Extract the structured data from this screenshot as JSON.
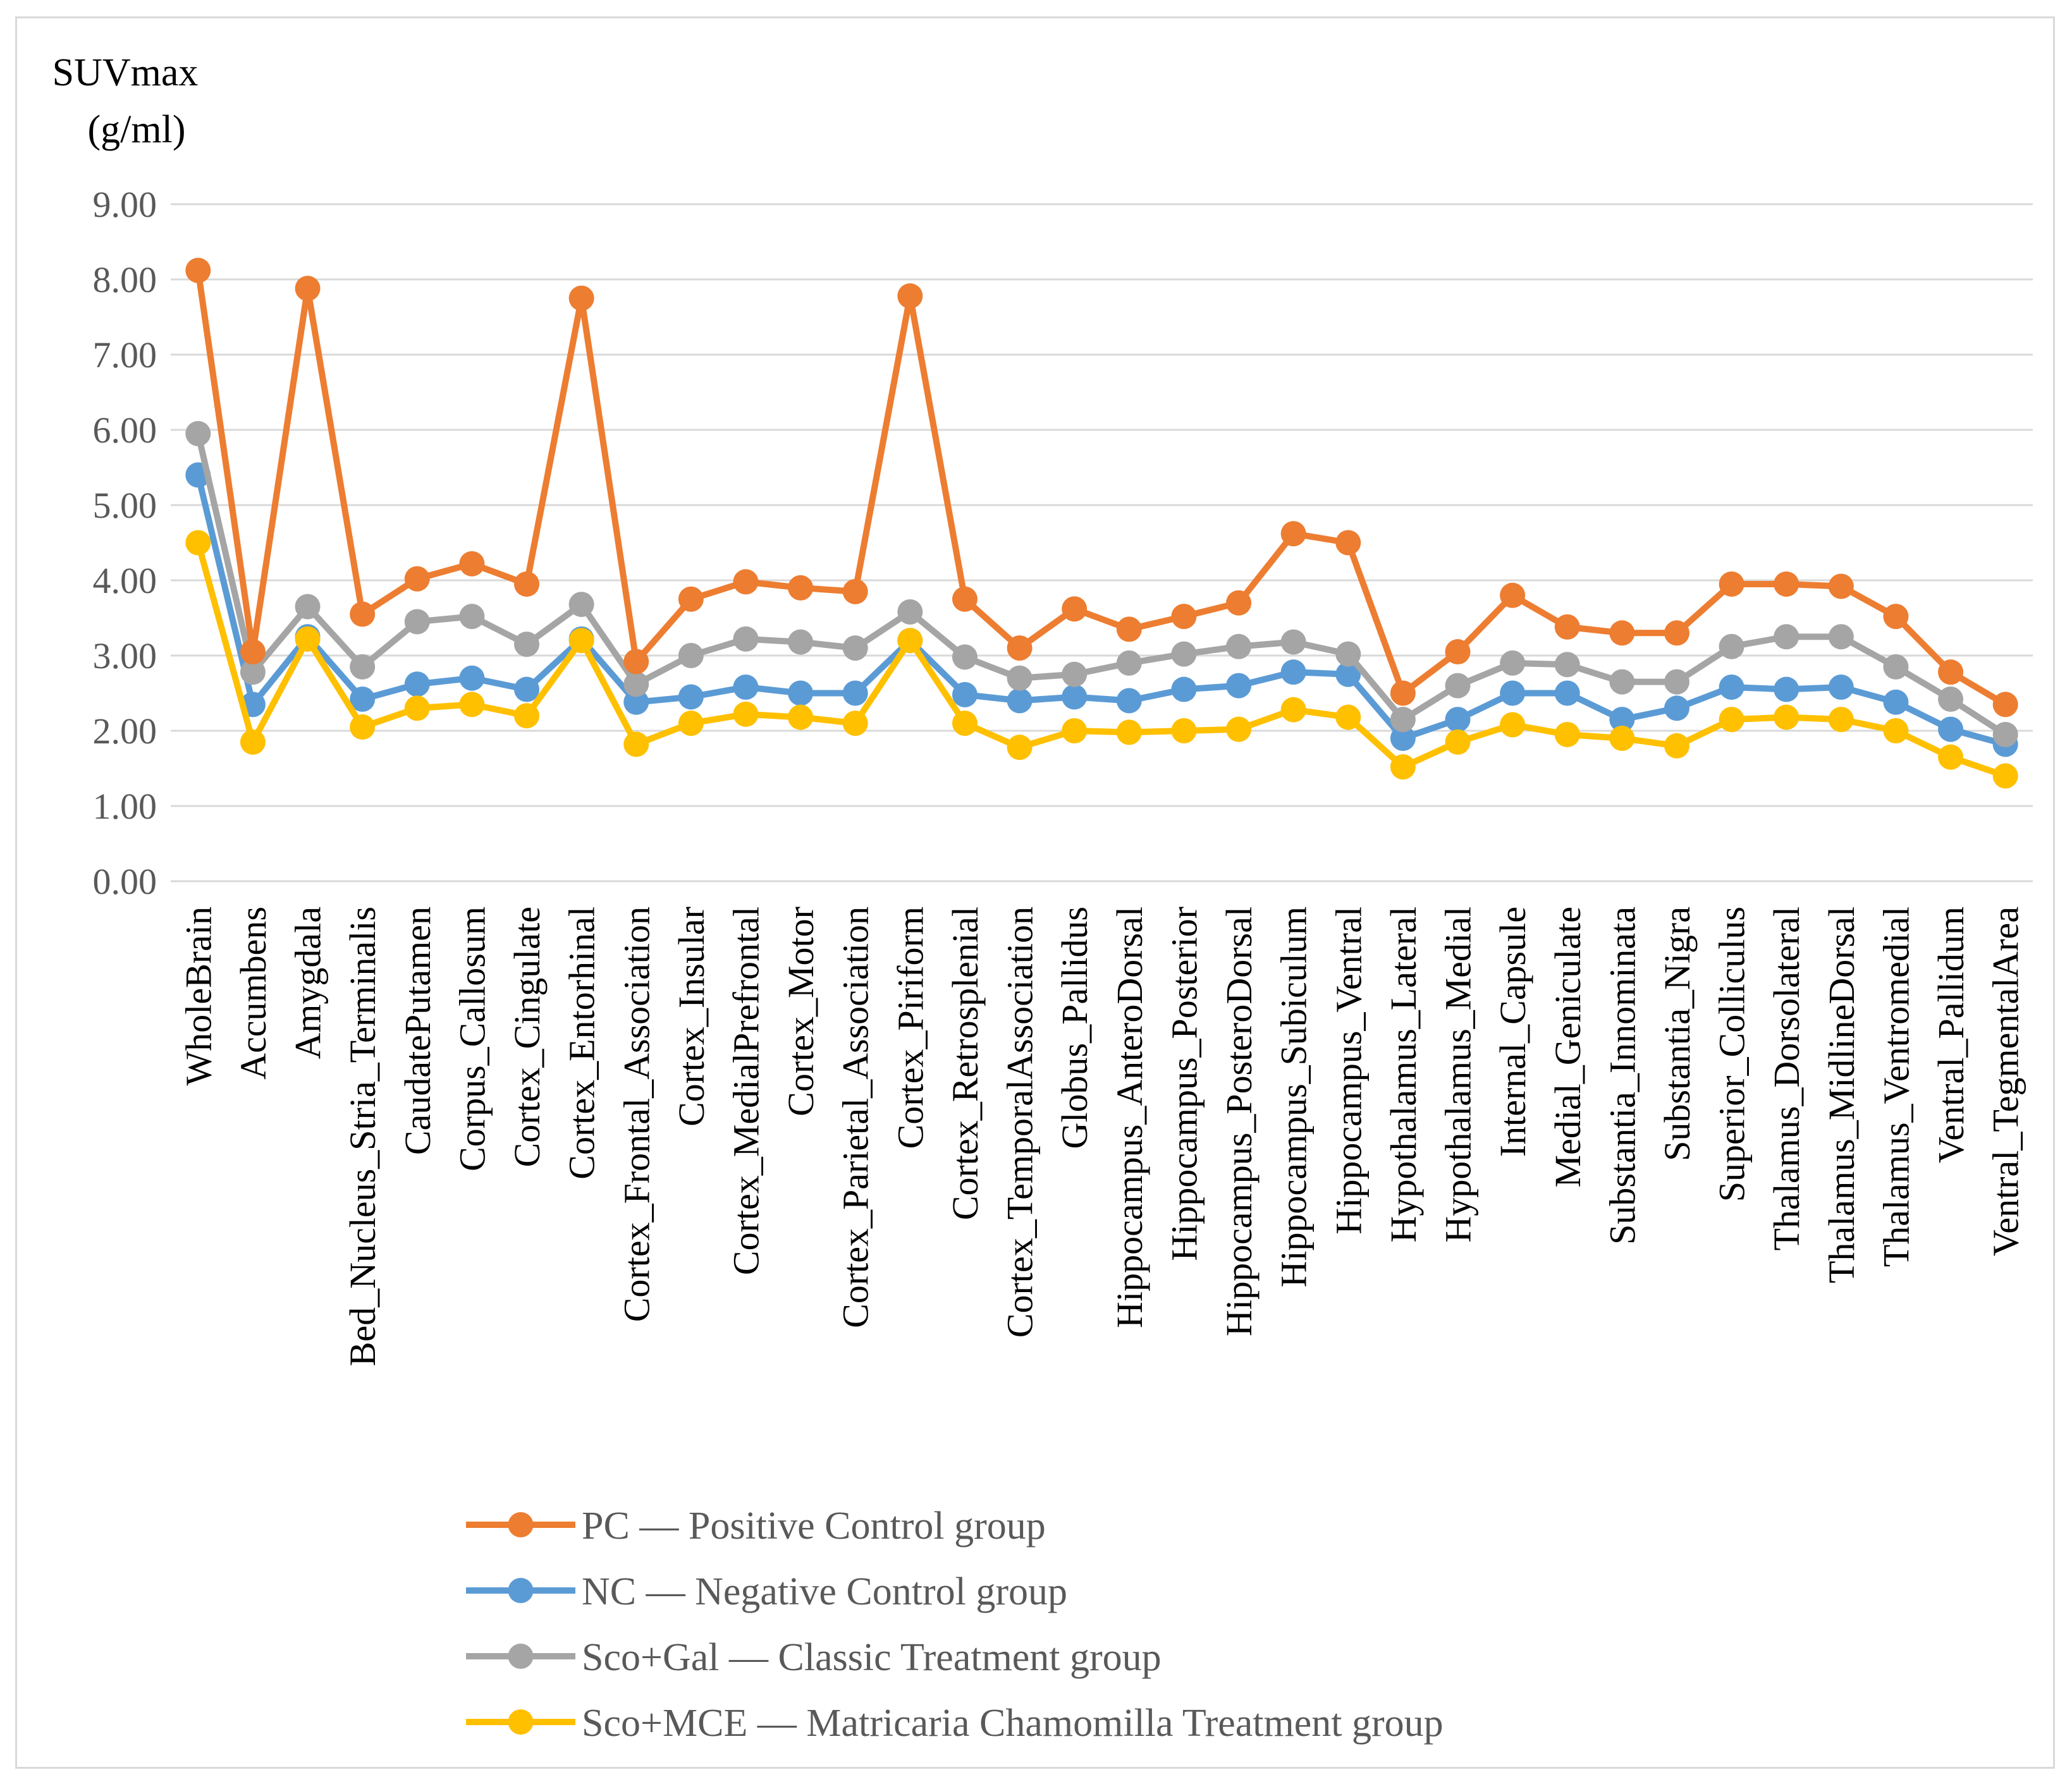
{
  "chart_data": {
    "type": "line",
    "title": "",
    "ylabel": [
      "SUVmax",
      "(g/ml)"
    ],
    "xlabel": "",
    "ylim": [
      0,
      9
    ],
    "yticks": [
      "0.00",
      "1.00",
      "2.00",
      "3.00",
      "4.00",
      "5.00",
      "6.00",
      "7.00",
      "8.00",
      "9.00"
    ],
    "grid": true,
    "legend_position": "bottom",
    "categories": [
      "WholeBrain",
      "Accumbens",
      "Amygdala",
      "Bed_Nucleus_Stria_Terminalis",
      "CaudatePutamen",
      "Corpus_Callosum",
      "Cortex_Cingulate",
      "Cortex_Entorhinal",
      "Cortex_Frontal_Association",
      "Cortex_Insular",
      "Cortex_MedialPrefrontal",
      "Cortex_Motor",
      "Cortex_Parietal_Association",
      "Cortex_Piriform",
      "Cortex_Retrosplenial",
      "Cortex_TemporalAssociation",
      "Globus_Pallidus",
      "Hippocampus_AnteroDorsal",
      "Hippocampus_Posterior",
      "Hippocampus_PosteroDorsal",
      "Hippocampus_Subiculum",
      "Hippocampus_Ventral",
      "Hypothalamus_Lateral",
      "Hypothalamus_Medial",
      "Internal_Capsule",
      "Medial_Geniculate",
      "Substantia_Innominata",
      "Substantia_Nigra",
      "Superior_Colliculus",
      "Thalamus_Dorsolateral",
      "Thalamus_MidlineDorsal",
      "Thalamus_Ventromedial",
      "Ventral_Pallidum",
      "Ventral_TegmentalArea"
    ],
    "series": [
      {
        "name": "PC — Positive Control group",
        "color": "#ED7D31",
        "values": [
          8.12,
          3.05,
          7.88,
          3.55,
          4.02,
          4.22,
          3.95,
          7.75,
          2.92,
          3.75,
          3.98,
          3.9,
          3.85,
          7.78,
          3.75,
          3.1,
          3.62,
          3.35,
          3.52,
          3.7,
          4.62,
          4.5,
          2.5,
          3.05,
          3.8,
          3.38,
          3.3,
          3.3,
          3.95,
          3.95,
          3.92,
          3.52,
          2.78,
          2.35
        ]
      },
      {
        "name": "NC — Negative Control group",
        "color": "#5B9BD5",
        "values": [
          5.4,
          2.35,
          3.25,
          2.42,
          2.62,
          2.7,
          2.55,
          3.22,
          2.38,
          2.45,
          2.58,
          2.5,
          2.5,
          3.2,
          2.48,
          2.4,
          2.45,
          2.4,
          2.55,
          2.6,
          2.78,
          2.75,
          1.9,
          2.15,
          2.5,
          2.5,
          2.15,
          2.3,
          2.58,
          2.55,
          2.58,
          2.38,
          2.02,
          1.82
        ]
      },
      {
        "name": "Sco+Gal — Classic Treatment group",
        "color": "#A5A5A5",
        "values": [
          5.95,
          2.78,
          3.65,
          2.85,
          3.45,
          3.52,
          3.15,
          3.68,
          2.62,
          3.0,
          3.22,
          3.18,
          3.1,
          3.58,
          2.98,
          2.7,
          2.75,
          2.9,
          3.02,
          3.12,
          3.18,
          3.02,
          2.15,
          2.6,
          2.9,
          2.88,
          2.65,
          2.65,
          3.12,
          3.25,
          3.25,
          2.85,
          2.42,
          1.95
        ]
      },
      {
        "name": "Sco+MCE — Matricaria Chamomilla Treatment group",
        "color": "#FFC000",
        "values": [
          4.5,
          1.85,
          3.22,
          2.05,
          2.3,
          2.35,
          2.2,
          3.2,
          1.82,
          2.1,
          2.22,
          2.18,
          2.1,
          3.2,
          2.1,
          1.78,
          2.0,
          1.98,
          2.0,
          2.02,
          2.28,
          2.18,
          1.52,
          1.85,
          2.08,
          1.95,
          1.9,
          1.8,
          2.15,
          2.18,
          2.15,
          2.0,
          1.65,
          1.4
        ]
      }
    ]
  }
}
